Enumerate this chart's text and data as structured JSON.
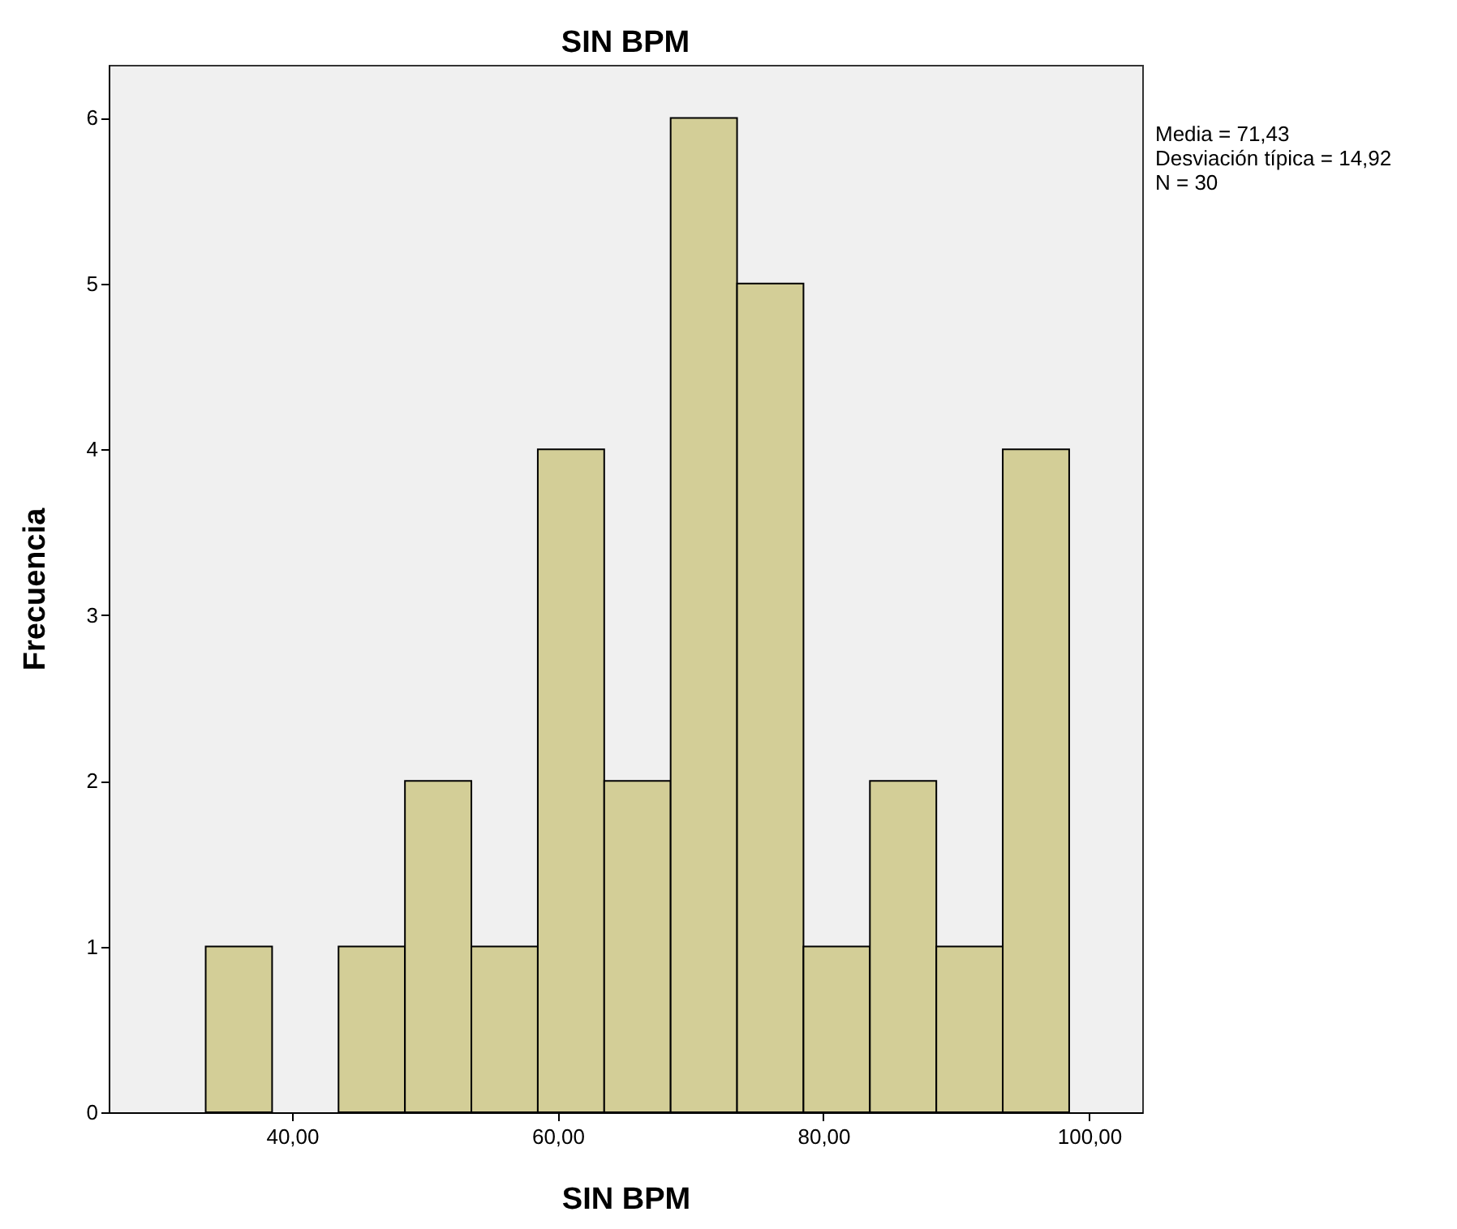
{
  "chart_data": {
    "type": "histogram",
    "title": "SIN BPM",
    "xlabel": "SIN BPM",
    "ylabel": "Frecuencia",
    "bins": [
      33.5,
      38.5,
      43.5,
      48.5,
      53.5,
      58.5,
      63.5,
      68.5,
      73.5,
      78.5,
      83.5,
      88.5,
      93.5,
      98.5
    ],
    "values": [
      1,
      0,
      1,
      2,
      1,
      4,
      2,
      6,
      5,
      1,
      2,
      1,
      4
    ],
    "color": "#d3ce97",
    "xlim": [
      26.2,
      104
    ],
    "xticks": [
      {
        "value": 40,
        "label": "40,00"
      },
      {
        "value": 60,
        "label": "60,00"
      },
      {
        "value": 80,
        "label": "80,00"
      },
      {
        "value": 100,
        "label": "100,00"
      }
    ],
    "ylim": [
      0,
      6.32
    ],
    "yticks": [
      0,
      1,
      2,
      3,
      4,
      5,
      6
    ],
    "annotations": [
      "Media = 71,43",
      "Desviación típica = 14,92",
      "N = 30"
    ]
  }
}
